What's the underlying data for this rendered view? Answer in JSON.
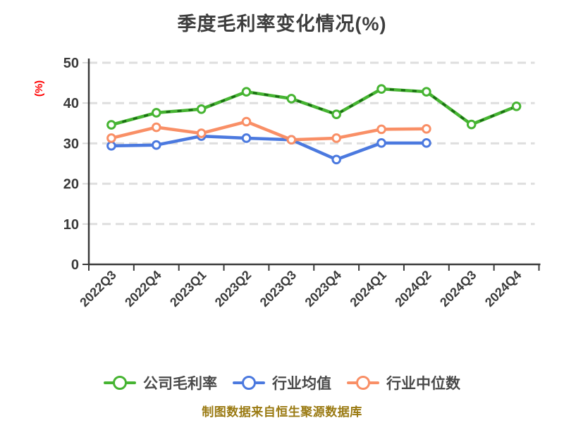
{
  "title": "季度毛利率变化情况(%)",
  "y_axis_unit": "(%)",
  "footer": "制图数据来自恒生聚源数据库",
  "colors": {
    "company_line": "#46b432",
    "company_dash_overlay": "#0e5a0a",
    "industry_avg_line": "#4b79df",
    "industry_median_line": "#f98f66",
    "marker_fill": "#ffffff",
    "axis": "#3a3a3a",
    "gridline": "#dedede",
    "title_text": "#3d3d3d",
    "axis_label_text": "#3a3a3a",
    "legend_text": "#4a4a4a",
    "footer_text": "#9a7a12",
    "unit_text": "#ff0000",
    "background": "#ffffff"
  },
  "legend": [
    {
      "id": "company",
      "label": "公司毛利率",
      "color": "#46b432"
    },
    {
      "id": "industry-avg",
      "label": "行业均值",
      "color": "#4b79df"
    },
    {
      "id": "industry-median",
      "label": "行业中位数",
      "color": "#f98f66"
    }
  ],
  "chart_data": {
    "type": "line",
    "title": "季度毛利率变化情况(%)",
    "ylabel": "(%)",
    "categories": [
      "2022Q3",
      "2022Q4",
      "2023Q1",
      "2023Q2",
      "2023Q3",
      "2023Q4",
      "2024Q1",
      "2024Q2",
      "2024Q3",
      "2024Q4"
    ],
    "series": [
      {
        "id": "company",
        "name": "公司毛利率",
        "color": "#46b432",
        "dashed_overlay": true,
        "values": [
          34.6,
          37.6,
          38.5,
          42.8,
          41.1,
          37.2,
          43.5,
          42.8,
          34.7,
          39.2
        ]
      },
      {
        "id": "industry-avg",
        "name": "行业均值",
        "color": "#4b79df",
        "dashed_overlay": false,
        "values": [
          29.4,
          29.6,
          31.8,
          31.3,
          30.9,
          26.0,
          30.1,
          30.1,
          null,
          null
        ]
      },
      {
        "id": "industry-median",
        "name": "行业中位数",
        "color": "#f98f66",
        "dashed_overlay": false,
        "values": [
          31.3,
          34.0,
          32.5,
          35.4,
          30.9,
          31.3,
          33.5,
          33.6,
          null,
          null
        ]
      }
    ],
    "ylim": [
      0,
      50
    ],
    "yticks": [
      0,
      10,
      20,
      30,
      40,
      50
    ],
    "grid": "horizontal-dashed",
    "legend_position": "bottom"
  }
}
